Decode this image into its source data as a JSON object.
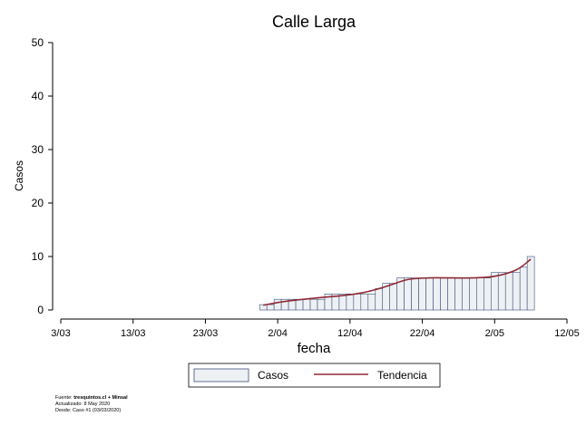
{
  "chart_data": {
    "type": "bar",
    "title": "Calle Larga",
    "xlabel": "fecha",
    "ylabel": "Casos",
    "ylim": [
      0,
      50
    ],
    "yticks": [
      0,
      10,
      20,
      30,
      40,
      50
    ],
    "x_axis_start": "2020-03-03",
    "x_axis_end": "2020-05-12",
    "xticks": [
      {
        "date": "2020-03-03",
        "label": "3/03"
      },
      {
        "date": "2020-03-13",
        "label": "13/03"
      },
      {
        "date": "2020-03-23",
        "label": "23/03"
      },
      {
        "date": "2020-04-02",
        "label": "2/04"
      },
      {
        "date": "2020-04-12",
        "label": "12/04"
      },
      {
        "date": "2020-04-22",
        "label": "22/04"
      },
      {
        "date": "2020-05-02",
        "label": "2/05"
      },
      {
        "date": "2020-05-12",
        "label": "12/05"
      }
    ],
    "grid": false,
    "legend_position": "bottom",
    "colors": {
      "bar_fill": "#eef1f4",
      "bar_stroke": "#3e4f7a",
      "trend": "#8f2a35"
    },
    "series": [
      {
        "name": "Casos",
        "type": "bar",
        "x": [
          "2020-03-31",
          "2020-04-01",
          "2020-04-02",
          "2020-04-03",
          "2020-04-04",
          "2020-04-05",
          "2020-04-06",
          "2020-04-07",
          "2020-04-08",
          "2020-04-09",
          "2020-04-10",
          "2020-04-11",
          "2020-04-12",
          "2020-04-13",
          "2020-04-14",
          "2020-04-15",
          "2020-04-16",
          "2020-04-17",
          "2020-04-18",
          "2020-04-19",
          "2020-04-20",
          "2020-04-21",
          "2020-04-22",
          "2020-04-23",
          "2020-04-24",
          "2020-04-25",
          "2020-04-26",
          "2020-04-27",
          "2020-04-28",
          "2020-04-29",
          "2020-04-30",
          "2020-05-01",
          "2020-05-02",
          "2020-05-03",
          "2020-05-04",
          "2020-05-05",
          "2020-05-06",
          "2020-05-07"
        ],
        "values": [
          1,
          1,
          2,
          2,
          2,
          2,
          2,
          2,
          2,
          3,
          3,
          3,
          3,
          3,
          3,
          3,
          4,
          5,
          5,
          6,
          6,
          6,
          6,
          6,
          6,
          6,
          6,
          6,
          6,
          6,
          6,
          6,
          7,
          7,
          7,
          7,
          8,
          10
        ]
      },
      {
        "name": "Tendencia",
        "type": "line",
        "x": [
          "2020-03-31",
          "2020-04-03",
          "2020-04-07",
          "2020-04-11",
          "2020-04-14",
          "2020-04-17",
          "2020-04-20",
          "2020-04-23",
          "2020-04-26",
          "2020-04-29",
          "2020-05-02",
          "2020-05-05",
          "2020-05-07"
        ],
        "values": [
          0.9,
          1.6,
          2.2,
          2.7,
          3.3,
          4.4,
          5.7,
          6.0,
          6.0,
          6.0,
          6.3,
          7.5,
          9.5
        ]
      }
    ]
  },
  "legend": {
    "bar_label": "Casos",
    "line_label": "Tendencia"
  },
  "footer": {
    "source_prefix": "Fuente: ",
    "source_bold": "tresquintos.cl + Minsal",
    "updated": "Actualizado: 8 May 2020",
    "since": "Desde: Caso #1  (03/03/2020)"
  }
}
